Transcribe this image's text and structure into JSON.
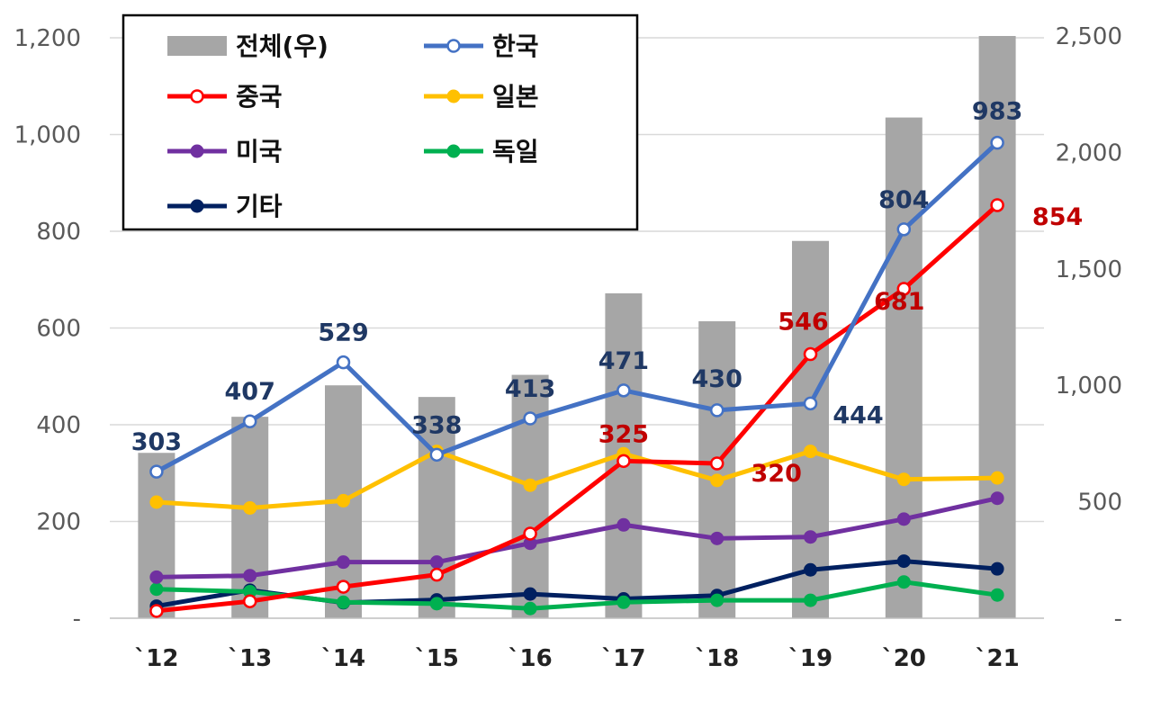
{
  "chart_data": {
    "type": "bar",
    "categories": [
      "`12",
      "`13",
      "`14",
      "`15",
      "`16",
      "`17",
      "`18",
      "`19",
      "`20",
      "`21"
    ],
    "y_left": {
      "ylim": [
        0,
        1200
      ],
      "ticks": [
        {
          "value": 0,
          "label": "-"
        },
        {
          "value": 200,
          "label": "200"
        },
        {
          "value": 400,
          "label": "400"
        },
        {
          "value": 600,
          "label": "600"
        },
        {
          "value": 800,
          "label": "800"
        },
        {
          "value": 1000,
          "label": "1,000"
        },
        {
          "value": 1200,
          "label": "1,200"
        }
      ]
    },
    "y_right": {
      "ylim": [
        0,
        2500
      ],
      "ticks": [
        {
          "value": 0,
          "label": "-"
        },
        {
          "value": 500,
          "label": "500"
        },
        {
          "value": 1000,
          "label": "1,000"
        },
        {
          "value": 1500,
          "label": "1,500"
        },
        {
          "value": 2000,
          "label": "2,000"
        },
        {
          "value": 2500,
          "label": "2,500"
        }
      ]
    },
    "grid": true,
    "legend_position": "top-left",
    "bars": {
      "name": "전체(우)",
      "axis": "right",
      "color": "#a6a6a6",
      "values": [
        710,
        865,
        1000,
        950,
        1045,
        1395,
        1275,
        1620,
        2150,
        2500
      ]
    },
    "series": [
      {
        "name": "한국",
        "color": "#4472c4",
        "marker": "hollow",
        "label_color": "#1f3864",
        "values": [
          303,
          407,
          529,
          338,
          413,
          471,
          430,
          444,
          804,
          983
        ],
        "labels": [
          "303",
          "407",
          "529",
          "338",
          "413",
          "471",
          "430",
          "444",
          "804",
          "983"
        ]
      },
      {
        "name": "중국",
        "color": "#ff0000",
        "marker": "hollow",
        "label_color": "#c00000",
        "values": [
          15,
          35,
          65,
          90,
          175,
          325,
          320,
          546,
          681,
          854
        ],
        "labels": [
          "",
          "",
          "",
          "",
          "",
          "325",
          "320",
          "546",
          "681",
          "854"
        ]
      },
      {
        "name": "일본",
        "color": "#ffc000",
        "marker": "filled",
        "values": [
          240,
          228,
          243,
          345,
          275,
          340,
          285,
          345,
          287,
          290
        ]
      },
      {
        "name": "미국",
        "color": "#7030a0",
        "marker": "filled",
        "values": [
          85,
          88,
          116,
          116,
          155,
          193,
          165,
          168,
          205,
          248
        ]
      },
      {
        "name": "독일",
        "color": "#00b050",
        "marker": "filled",
        "values": [
          60,
          55,
          33,
          30,
          20,
          33,
          37,
          37,
          75,
          48
        ]
      },
      {
        "name": "기타",
        "color": "#002060",
        "marker": "filled",
        "values": [
          25,
          58,
          32,
          38,
          50,
          40,
          47,
          100,
          118,
          102
        ]
      }
    ]
  }
}
